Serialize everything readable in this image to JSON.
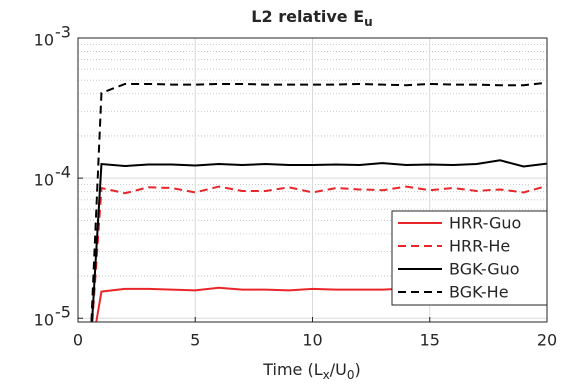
{
  "chart_data": {
    "type": "line",
    "title": [
      "L2 relative E",
      "u"
    ],
    "xlabel": [
      "Time (L",
      "x",
      "/U",
      "0",
      ")"
    ],
    "x": [
      0.5,
      1,
      2,
      3,
      4,
      5,
      6,
      7,
      8,
      9,
      10,
      11,
      12,
      13,
      14,
      15,
      16,
      17,
      18,
      19,
      20
    ],
    "series": [
      {
        "name": "HRR-Guo",
        "color": "#e8262a",
        "dashed": false,
        "values": [
          5e-06,
          1.55e-05,
          1.62e-05,
          1.62e-05,
          1.6e-05,
          1.58e-05,
          1.65e-05,
          1.6e-05,
          1.6e-05,
          1.58e-05,
          1.62e-05,
          1.6e-05,
          1.6e-05,
          1.6e-05,
          1.63e-05,
          1.6e-05,
          1.6e-05,
          1.62e-05,
          1.6e-05,
          1.58e-05,
          1.57e-05
        ]
      },
      {
        "name": "HRR-He",
        "color": "#e8262a",
        "dashed": true,
        "values": [
          5e-06,
          8.5e-05,
          7.8e-05,
          8.6e-05,
          8.5e-05,
          7.9e-05,
          8.7e-05,
          8.1e-05,
          8.1e-05,
          8.6e-05,
          7.9e-05,
          8.5e-05,
          8.3e-05,
          8.2e-05,
          8.7e-05,
          8.2e-05,
          8.5e-05,
          8.1e-05,
          8.3e-05,
          7.9e-05,
          8.8e-05
        ]
      },
      {
        "name": "BGK-Guo",
        "color": "#000000",
        "dashed": false,
        "values": [
          5e-06,
          0.000126,
          0.000122,
          0.000125,
          0.000125,
          0.000123,
          0.000126,
          0.000124,
          0.000126,
          0.000124,
          0.000124,
          0.000125,
          0.000124,
          0.000128,
          0.000124,
          0.000125,
          0.000124,
          0.000126,
          0.000134,
          0.000121,
          0.000127
        ]
      },
      {
        "name": "BGK-He",
        "color": "#000000",
        "dashed": true,
        "values": [
          5e-06,
          0.000405,
          0.00047,
          0.00047,
          0.000465,
          0.000465,
          0.00047,
          0.00047,
          0.000465,
          0.000465,
          0.000465,
          0.000465,
          0.00047,
          0.000465,
          0.00046,
          0.00047,
          0.000465,
          0.000465,
          0.00046,
          0.00046,
          0.00048
        ]
      }
    ],
    "xlim": [
      0,
      20
    ],
    "xticks": [
      0,
      5,
      10,
      15,
      20
    ],
    "ylim": [
      9.4e-06,
      0.001
    ],
    "yticks": [
      {
        "value": 1e-05,
        "label": "10",
        "exponent": "-5"
      },
      {
        "value": 0.0001,
        "label": "10",
        "exponent": "-4"
      },
      {
        "value": 0.001,
        "label": "10",
        "exponent": "-3"
      }
    ],
    "ylog": true,
    "grid": true,
    "minor_grid": true,
    "legend": "lower right"
  }
}
